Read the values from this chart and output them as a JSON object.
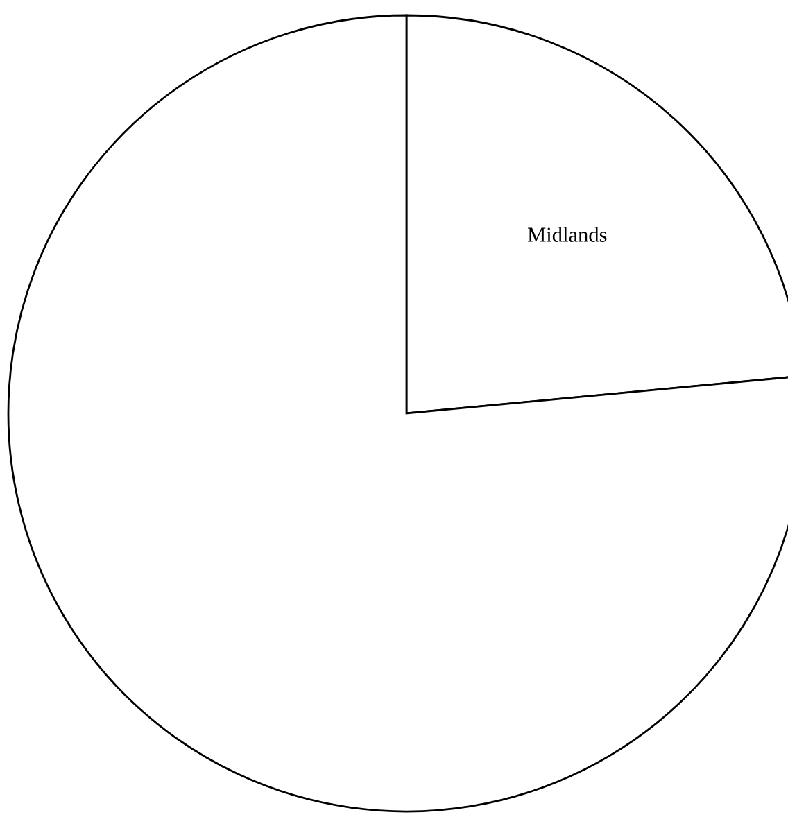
{
  "chart_data": {
    "type": "pie",
    "categories": [
      "Midlands",
      null
    ],
    "values": [
      23.5,
      76.5
    ],
    "colors": [
      "#ffffff",
      "#ffffff"
    ]
  }
}
